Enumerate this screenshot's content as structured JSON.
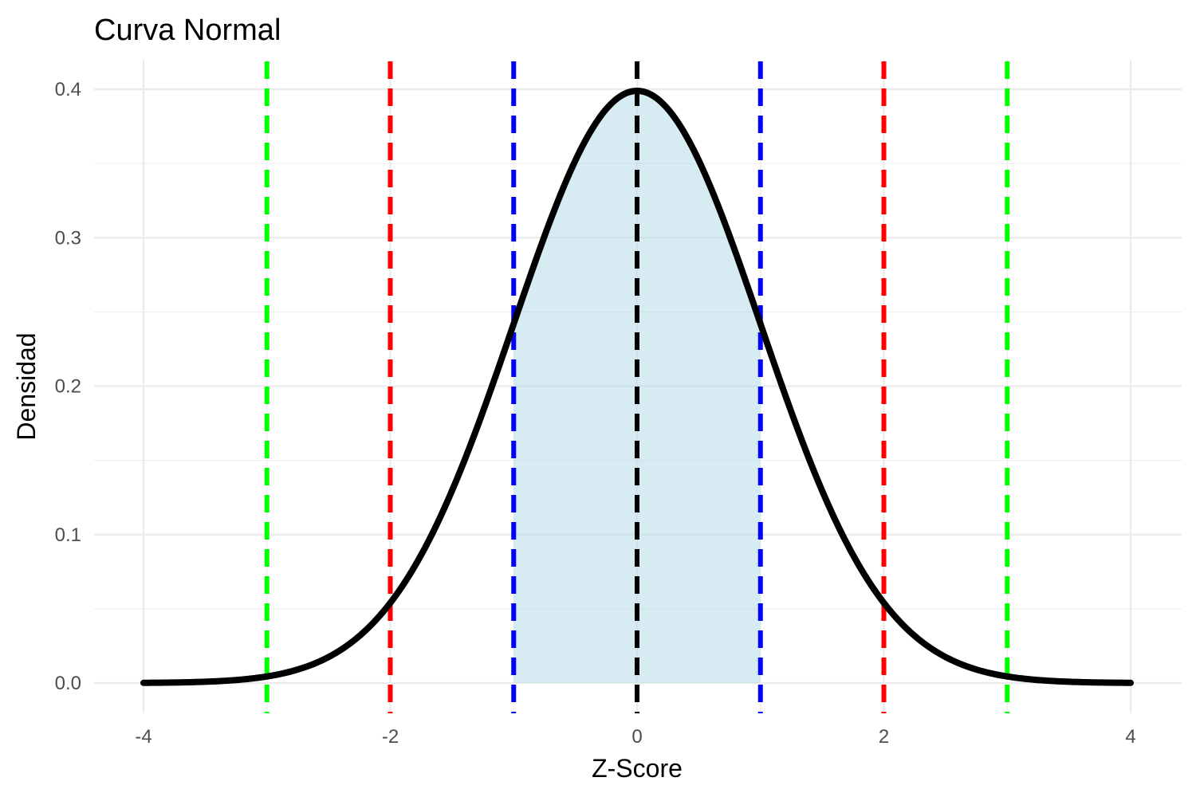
{
  "chart_data": {
    "type": "line",
    "title": "Curva Normal",
    "xlabel": "Z-Score",
    "ylabel": "Densidad",
    "xlim": [
      -4,
      4
    ],
    "ylim": [
      0,
      0.4
    ],
    "x_ticks": [
      -4,
      -2,
      0,
      2,
      4
    ],
    "x_tick_labels": [
      "-4",
      "-2",
      "0",
      "2",
      "4"
    ],
    "y_ticks": [
      0,
      0.1,
      0.2,
      0.3,
      0.4
    ],
    "y_tick_labels": [
      "0.0",
      "0.1",
      "0.2",
      "0.3",
      "0.4"
    ],
    "grid": true,
    "curve": {
      "distribution": "standard normal",
      "x": [
        -4,
        -3.5,
        -3,
        -2.5,
        -2,
        -1.5,
        -1,
        -0.5,
        0,
        0.5,
        1,
        1.5,
        2,
        2.5,
        3,
        3.5,
        4
      ],
      "y": [
        0.0001,
        0.0009,
        0.0044,
        0.0175,
        0.054,
        0.1295,
        0.242,
        0.3521,
        0.3989,
        0.3521,
        0.242,
        0.1295,
        0.054,
        0.0175,
        0.0044,
        0.0009,
        0.0001
      ],
      "color": "#000000"
    },
    "shaded_region": {
      "x_from": -1,
      "x_to": 1,
      "color": "#add8e6"
    },
    "vlines": [
      {
        "x": -3,
        "color": "#00ff00"
      },
      {
        "x": -2,
        "color": "#ff0000"
      },
      {
        "x": -1,
        "color": "#0000ff"
      },
      {
        "x": 0,
        "color": "#000000"
      },
      {
        "x": 1,
        "color": "#0000ff"
      },
      {
        "x": 2,
        "color": "#ff0000"
      },
      {
        "x": 3,
        "color": "#00ff00"
      }
    ]
  }
}
